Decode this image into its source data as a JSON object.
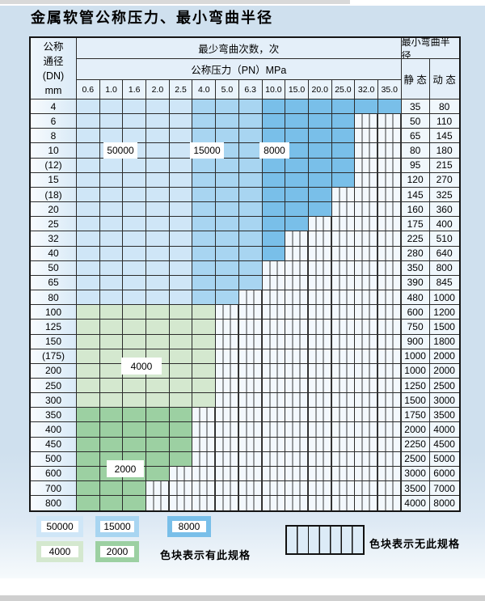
{
  "title": "金属软管公称压力、最小弯曲半径",
  "table": {
    "header": {
      "dn_label_lines": [
        "公称",
        "通径",
        "(DN)",
        "mm"
      ],
      "bend_cycles_label": "最少弯曲次数，次",
      "pressure_label": "公称压力（PN）MPa",
      "pressures": [
        "0.6",
        "1.0",
        "1.6",
        "2.0",
        "2.5",
        "4.0",
        "5.0",
        "6.3",
        "10.0",
        "15.0",
        "20.0",
        "25.0",
        "32.0",
        "35.0"
      ],
      "radius_label": "最小弯曲半径",
      "static_label": "静 态",
      "dynamic_label": "动 态"
    },
    "palette": {
      "b1": "#cfe6f7",
      "b2": "#a8d5f1",
      "b3": "#79bfe9",
      "g1": "#d4e8cf",
      "g2": "#9cd0a2"
    },
    "bend_labels": {
      "l50000": "50000",
      "l15000": "15000",
      "l8000": "8000",
      "l4000": "4000",
      "l2000": "2000"
    },
    "rows": [
      {
        "dn": "4",
        "cells": [
          "b1",
          "b1",
          "b1",
          "b1",
          "b1",
          "b2",
          "b2",
          "b2",
          "b3",
          "b3",
          "b3",
          "b3",
          "b3",
          "b3"
        ],
        "static": "35",
        "dynamic": "80"
      },
      {
        "dn": "6",
        "cells": [
          "b1",
          "b1",
          "b1",
          "b1",
          "b1",
          "b2",
          "b2",
          "b2",
          "b3",
          "b3",
          "b3",
          "b3",
          "x",
          "x"
        ],
        "static": "50",
        "dynamic": "110"
      },
      {
        "dn": "8",
        "cells": [
          "b1",
          "b1",
          "b1",
          "b1",
          "b1",
          "b2",
          "b2",
          "b2",
          "b3",
          "b3",
          "b3",
          "b3",
          "x",
          "x"
        ],
        "static": "65",
        "dynamic": "145"
      },
      {
        "dn": "10",
        "cells": [
          "b1",
          "b1",
          "b1",
          "b1",
          "b1",
          "b2",
          "b2",
          "b2",
          "b3",
          "b3",
          "b3",
          "b3",
          "x",
          "x"
        ],
        "static": "80",
        "dynamic": "180"
      },
      {
        "dn": "(12)",
        "cells": [
          "b1",
          "b1",
          "b1",
          "b1",
          "b1",
          "b2",
          "b2",
          "b2",
          "b3",
          "b3",
          "b3",
          "b3",
          "x",
          "x"
        ],
        "static": "95",
        "dynamic": "215"
      },
      {
        "dn": "15",
        "cells": [
          "b1",
          "b1",
          "b1",
          "b1",
          "b1",
          "b2",
          "b2",
          "b2",
          "b3",
          "b3",
          "b3",
          "b3",
          "x",
          "x"
        ],
        "static": "120",
        "dynamic": "270"
      },
      {
        "dn": "(18)",
        "cells": [
          "b1",
          "b1",
          "b1",
          "b1",
          "b1",
          "b2",
          "b2",
          "b2",
          "b3",
          "b3",
          "b3",
          "x",
          "x",
          "x"
        ],
        "static": "145",
        "dynamic": "325"
      },
      {
        "dn": "20",
        "cells": [
          "b1",
          "b1",
          "b1",
          "b1",
          "b1",
          "b2",
          "b2",
          "b2",
          "b3",
          "b3",
          "b3",
          "x",
          "x",
          "x"
        ],
        "static": "160",
        "dynamic": "360"
      },
      {
        "dn": "25",
        "cells": [
          "b1",
          "b1",
          "b1",
          "b1",
          "b1",
          "b2",
          "b2",
          "b2",
          "b3",
          "b3",
          "x",
          "x",
          "x",
          "x"
        ],
        "static": "175",
        "dynamic": "400"
      },
      {
        "dn": "32",
        "cells": [
          "b1",
          "b1",
          "b1",
          "b1",
          "b1",
          "b2",
          "b2",
          "b2",
          "b3",
          "x",
          "x",
          "x",
          "x",
          "x"
        ],
        "static": "225",
        "dynamic": "510"
      },
      {
        "dn": "40",
        "cells": [
          "b1",
          "b1",
          "b1",
          "b1",
          "b1",
          "b2",
          "b2",
          "b2",
          "b3",
          "x",
          "x",
          "x",
          "x",
          "x"
        ],
        "static": "280",
        "dynamic": "640"
      },
      {
        "dn": "50",
        "cells": [
          "b1",
          "b1",
          "b1",
          "b1",
          "b1",
          "b2",
          "b2",
          "b2",
          "x",
          "x",
          "x",
          "x",
          "x",
          "x"
        ],
        "static": "350",
        "dynamic": "800"
      },
      {
        "dn": "65",
        "cells": [
          "b1",
          "b1",
          "b1",
          "b1",
          "b1",
          "b2",
          "b2",
          "b2",
          "x",
          "x",
          "x",
          "x",
          "x",
          "x"
        ],
        "static": "390",
        "dynamic": "845"
      },
      {
        "dn": "80",
        "cells": [
          "b1",
          "b1",
          "b1",
          "b1",
          "b1",
          "b2",
          "b2",
          "x",
          "x",
          "x",
          "x",
          "x",
          "x",
          "x"
        ],
        "static": "480",
        "dynamic": "1000"
      },
      {
        "dn": "100",
        "cells": [
          "g1",
          "g1",
          "g1",
          "g1",
          "g1",
          "g1",
          "x",
          "x",
          "x",
          "x",
          "x",
          "x",
          "x",
          "x"
        ],
        "static": "600",
        "dynamic": "1200"
      },
      {
        "dn": "125",
        "cells": [
          "g1",
          "g1",
          "g1",
          "g1",
          "g1",
          "g1",
          "x",
          "x",
          "x",
          "x",
          "x",
          "x",
          "x",
          "x"
        ],
        "static": "750",
        "dynamic": "1500"
      },
      {
        "dn": "150",
        "cells": [
          "g1",
          "g1",
          "g1",
          "g1",
          "g1",
          "g1",
          "x",
          "x",
          "x",
          "x",
          "x",
          "x",
          "x",
          "x"
        ],
        "static": "900",
        "dynamic": "1800"
      },
      {
        "dn": "(175)",
        "cells": [
          "g1",
          "g1",
          "g1",
          "g1",
          "g1",
          "g1",
          "x",
          "x",
          "x",
          "x",
          "x",
          "x",
          "x",
          "x"
        ],
        "static": "1000",
        "dynamic": "2000"
      },
      {
        "dn": "200",
        "cells": [
          "g1",
          "g1",
          "g1",
          "g1",
          "g1",
          "g1",
          "x",
          "x",
          "x",
          "x",
          "x",
          "x",
          "x",
          "x"
        ],
        "static": "1000",
        "dynamic": "2000"
      },
      {
        "dn": "250",
        "cells": [
          "g1",
          "g1",
          "g1",
          "g1",
          "g1",
          "g1",
          "x",
          "x",
          "x",
          "x",
          "x",
          "x",
          "x",
          "x"
        ],
        "static": "1250",
        "dynamic": "2500"
      },
      {
        "dn": "300",
        "cells": [
          "g1",
          "g1",
          "g1",
          "g1",
          "g1",
          "g1",
          "x",
          "x",
          "x",
          "x",
          "x",
          "x",
          "x",
          "x"
        ],
        "static": "1500",
        "dynamic": "3000"
      },
      {
        "dn": "350",
        "cells": [
          "g2",
          "g2",
          "g2",
          "g2",
          "g2",
          "x",
          "x",
          "x",
          "x",
          "x",
          "x",
          "x",
          "x",
          "x"
        ],
        "static": "1750",
        "dynamic": "3500"
      },
      {
        "dn": "400",
        "cells": [
          "g2",
          "g2",
          "g2",
          "g2",
          "g2",
          "x",
          "x",
          "x",
          "x",
          "x",
          "x",
          "x",
          "x",
          "x"
        ],
        "static": "2000",
        "dynamic": "4000"
      },
      {
        "dn": "450",
        "cells": [
          "g2",
          "g2",
          "g2",
          "g2",
          "g2",
          "x",
          "x",
          "x",
          "x",
          "x",
          "x",
          "x",
          "x",
          "x"
        ],
        "static": "2250",
        "dynamic": "4500"
      },
      {
        "dn": "500",
        "cells": [
          "g2",
          "g2",
          "g2",
          "g2",
          "g2",
          "x",
          "x",
          "x",
          "x",
          "x",
          "x",
          "x",
          "x",
          "x"
        ],
        "static": "2500",
        "dynamic": "5000"
      },
      {
        "dn": "600",
        "cells": [
          "g2",
          "g2",
          "g2",
          "g2",
          "x",
          "x",
          "x",
          "x",
          "x",
          "x",
          "x",
          "x",
          "x",
          "x"
        ],
        "static": "3000",
        "dynamic": "6000"
      },
      {
        "dn": "700",
        "cells": [
          "g2",
          "g2",
          "g2",
          "x",
          "x",
          "x",
          "x",
          "x",
          "x",
          "x",
          "x",
          "x",
          "x",
          "x"
        ],
        "static": "3500",
        "dynamic": "7000"
      },
      {
        "dn": "800",
        "cells": [
          "g2",
          "g2",
          "g2",
          "x",
          "x",
          "x",
          "x",
          "x",
          "x",
          "x",
          "x",
          "x",
          "x",
          "x"
        ],
        "static": "4000",
        "dynamic": "8000"
      }
    ]
  },
  "legend": {
    "blocks": [
      {
        "label": "50000",
        "band": "b1"
      },
      {
        "label": "15000",
        "band": "b2"
      },
      {
        "label": "8000",
        "band": "b3"
      },
      {
        "label": "4000",
        "band": "g1"
      },
      {
        "label": "2000",
        "band": "g2"
      }
    ],
    "has_spec_note": "色块表示有此规格",
    "no_spec_note": "色块表示无此规格"
  }
}
